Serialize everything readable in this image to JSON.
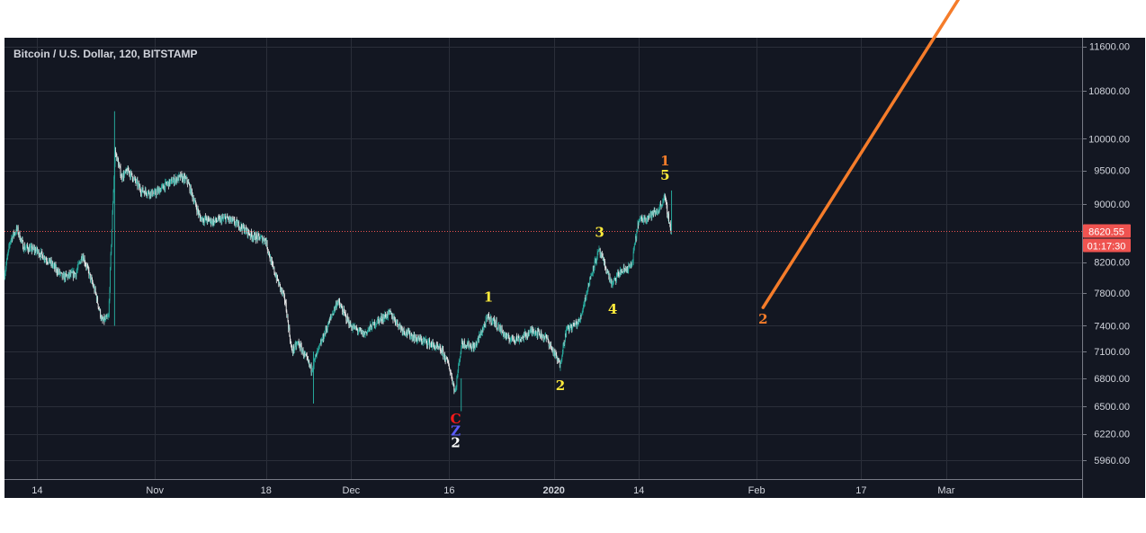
{
  "chart_data": {
    "type": "candlestick",
    "title": "Bitcoin / U.S. Dollar, 120, BITSTAMP",
    "symbol": "Bitcoin / U.S. Dollar",
    "interval": "120",
    "exchange": "BITSTAMP",
    "ylim": [
      5850,
      11900
    ],
    "y_ticks": [
      "11600.00",
      "10800.00",
      "10000.00",
      "9500.00",
      "9000.00",
      "8620.55",
      "8200.00",
      "7800.00",
      "7400.00",
      "7100.00",
      "6800.00",
      "6500.00",
      "6220.00",
      "5960.00"
    ],
    "y_tick_values": [
      11600,
      10800,
      10000,
      9500,
      9000,
      8620.55,
      8200,
      7800,
      7400,
      7100,
      6800,
      6500,
      6220,
      5960
    ],
    "x_ticks": [
      "14",
      "Nov",
      "18",
      "Dec",
      "16",
      "2020",
      "14",
      "Feb",
      "17",
      "Mar"
    ],
    "x_tick_dates": [
      "2019-10-14",
      "2019-11-01",
      "2019-11-18",
      "2019-12-01",
      "2019-12-16",
      "2020-01-01",
      "2020-01-14",
      "2020-02-01",
      "2020-02-17",
      "2020-03-01"
    ],
    "x_range": [
      "2019-10-09",
      "2020-03-31"
    ],
    "last_price": "8620.55",
    "countdown": "01:17:30",
    "grid": true,
    "log_scale": true,
    "price_path": [
      [
        "2019-10-09",
        8000
      ],
      [
        "2019-10-10",
        8500
      ],
      [
        "2019-10-11",
        8650
      ],
      [
        "2019-10-12",
        8400
      ],
      [
        "2019-10-14",
        8350
      ],
      [
        "2019-10-16",
        8200
      ],
      [
        "2019-10-18",
        8000
      ],
      [
        "2019-10-20",
        8050
      ],
      [
        "2019-10-21",
        8300
      ],
      [
        "2019-10-23",
        7800
      ],
      [
        "2019-10-24",
        7450
      ],
      [
        "2019-10-25",
        7500
      ],
      [
        "2019-10-26",
        9800
      ],
      [
        "2019-10-27",
        9400
      ],
      [
        "2019-10-28",
        9500
      ],
      [
        "2019-10-30",
        9200
      ],
      [
        "2019-11-01",
        9150
      ],
      [
        "2019-11-03",
        9300
      ],
      [
        "2019-11-05",
        9400
      ],
      [
        "2019-11-06",
        9350
      ],
      [
        "2019-11-08",
        8800
      ],
      [
        "2019-11-10",
        8750
      ],
      [
        "2019-11-12",
        8800
      ],
      [
        "2019-11-14",
        8700
      ],
      [
        "2019-11-16",
        8550
      ],
      [
        "2019-11-18",
        8500
      ],
      [
        "2019-11-19",
        8150
      ],
      [
        "2019-11-21",
        7700
      ],
      [
        "2019-11-22",
        7100
      ],
      [
        "2019-11-23",
        7200
      ],
      [
        "2019-11-25",
        6900
      ],
      [
        "2019-11-26",
        7100
      ],
      [
        "2019-11-28",
        7500
      ],
      [
        "2019-11-29",
        7700
      ],
      [
        "2019-12-01",
        7400
      ],
      [
        "2019-12-03",
        7300
      ],
      [
        "2019-12-05",
        7450
      ],
      [
        "2019-12-07",
        7550
      ],
      [
        "2019-12-09",
        7350
      ],
      [
        "2019-12-11",
        7250
      ],
      [
        "2019-12-13",
        7200
      ],
      [
        "2019-12-15",
        7100
      ],
      [
        "2019-12-16",
        6950
      ],
      [
        "2019-12-17",
        6650
      ],
      [
        "2019-12-18",
        7200
      ],
      [
        "2019-12-20",
        7150
      ],
      [
        "2019-12-22",
        7500
      ],
      [
        "2019-12-23",
        7450
      ],
      [
        "2019-12-25",
        7250
      ],
      [
        "2019-12-27",
        7250
      ],
      [
        "2019-12-29",
        7350
      ],
      [
        "2019-12-31",
        7250
      ],
      [
        "2020-01-02",
        6950
      ],
      [
        "2020-01-03",
        7350
      ],
      [
        "2020-01-05",
        7450
      ],
      [
        "2020-01-07",
        8100
      ],
      [
        "2020-01-08",
        8350
      ],
      [
        "2020-01-10",
        7900
      ],
      [
        "2020-01-11",
        8050
      ],
      [
        "2020-01-13",
        8150
      ],
      [
        "2020-01-14",
        8750
      ],
      [
        "2020-01-15",
        8800
      ],
      [
        "2020-01-17",
        8900
      ],
      [
        "2020-01-18",
        9100
      ],
      [
        "2020-01-19",
        8620.55
      ]
    ],
    "annotations": [
      {
        "text": "C",
        "date": "2019-12-17",
        "price": 6370,
        "color": "#ff1a1a"
      },
      {
        "text": "Z",
        "date": "2019-12-17",
        "price": 6250,
        "color": "#5b5bff"
      },
      {
        "text": "2",
        "date": "2019-12-17",
        "price": 6130,
        "color": "#ffffff"
      },
      {
        "text": "1",
        "date": "2019-12-22",
        "price": 7750,
        "color": "#ffeb3b"
      },
      {
        "text": "2",
        "date": "2020-01-02",
        "price": 6720,
        "color": "#ffeb3b"
      },
      {
        "text": "3",
        "date": "2020-01-08",
        "price": 8600,
        "color": "#ffeb3b"
      },
      {
        "text": "4",
        "date": "2020-01-10",
        "price": 7600,
        "color": "#ffeb3b"
      },
      {
        "text": "5",
        "date": "2020-01-18",
        "price": 9430,
        "color": "#ffeb3b"
      },
      {
        "text": "1",
        "date": "2020-01-18",
        "price": 9650,
        "color": "#f57c2a"
      },
      {
        "text": "2",
        "date": "2020-02-02",
        "price": 7480,
        "color": "#f57c2a"
      }
    ],
    "projection_line": {
      "from": [
        "2020-02-02",
        7620
      ],
      "to": [
        "2020-03-07",
        13400
      ],
      "color": "#f57c2a"
    },
    "colors": {
      "background": "#131722",
      "grid": "#2a2e39",
      "up": "#26a69a",
      "down": "#ef5350",
      "candle_mono": "#e6e6e6",
      "price_line": "#ef5350",
      "text": "#d1d4dc",
      "axis_border": "#787b86"
    }
  }
}
